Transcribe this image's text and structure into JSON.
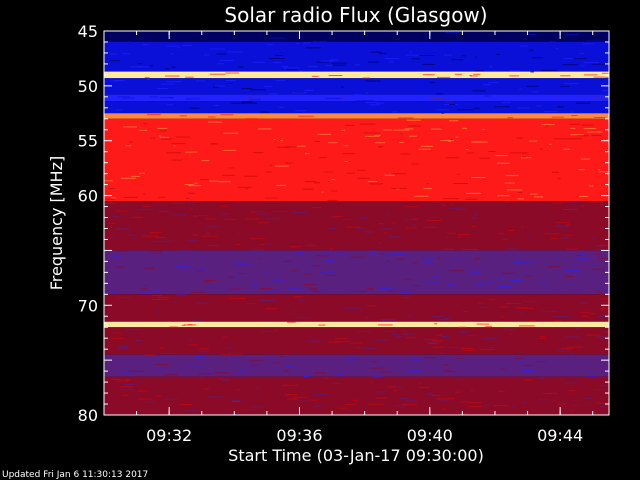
{
  "chart_data": {
    "type": "heatmap",
    "title": "Solar radio Flux (Glasgow)",
    "xlabel": "Start Time (03-Jan-17 09:30:00)",
    "ylabel": "Frequency [MHz]",
    "x_unit": "time of day",
    "xlim": [
      "09:30:00",
      "09:45:30"
    ],
    "ylim": [
      45,
      80
    ],
    "y_inverted": true,
    "x_ticks": [
      "09:32",
      "09:36",
      "09:40",
      "09:44"
    ],
    "y_ticks": [
      45,
      50,
      55,
      60,
      70,
      80
    ],
    "colorscale": [
      "#000060",
      "#0a10d8",
      "#2222ff",
      "#5a2080",
      "#8a0a28",
      "#c80808",
      "#ff1a1a",
      "#ff8a3c",
      "#ffe8a0"
    ],
    "bands": [
      {
        "from": 45.0,
        "to": 46.0,
        "level": 0
      },
      {
        "from": 46.0,
        "to": 48.7,
        "level": 1
      },
      {
        "from": 48.7,
        "to": 49.3,
        "level": 8
      },
      {
        "from": 49.3,
        "to": 50.8,
        "level": 1
      },
      {
        "from": 50.8,
        "to": 51.4,
        "level": 2
      },
      {
        "from": 51.4,
        "to": 52.5,
        "level": 1
      },
      {
        "from": 52.5,
        "to": 53.0,
        "level": 7
      },
      {
        "from": 53.0,
        "to": 60.5,
        "level": 6
      },
      {
        "from": 60.5,
        "to": 65.0,
        "level": 4
      },
      {
        "from": 65.0,
        "to": 69.0,
        "level": 3
      },
      {
        "from": 69.0,
        "to": 71.5,
        "level": 4
      },
      {
        "from": 71.5,
        "to": 72.0,
        "level": 8
      },
      {
        "from": 72.0,
        "to": 74.5,
        "level": 4
      },
      {
        "from": 74.5,
        "to": 76.5,
        "level": 3
      },
      {
        "from": 76.5,
        "to": 80.0,
        "level": 4
      }
    ],
    "footer": "Updated Fri Jan  6 11:30:13 2017"
  }
}
